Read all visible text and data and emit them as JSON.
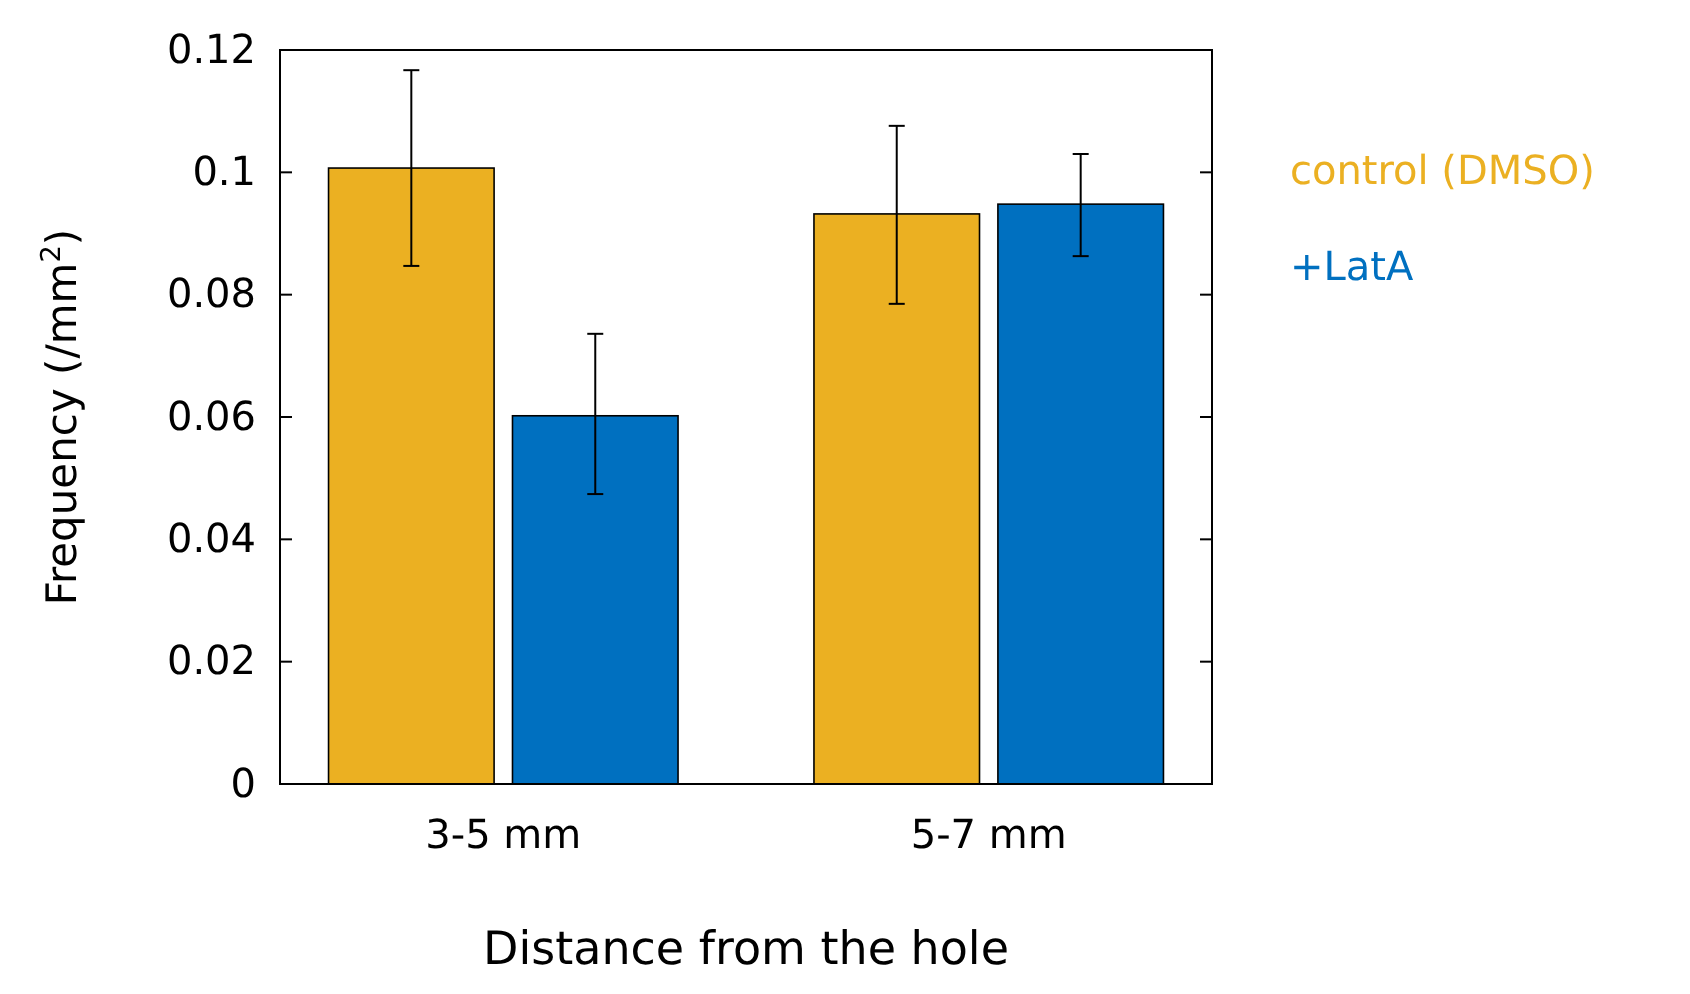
{
  "chart_data": {
    "type": "bar",
    "xlabel": "Distance from the hole",
    "ylabel": "Frequency (/mm$^{2}$)",
    "categories": [
      "3-5 mm",
      "5-7 mm"
    ],
    "series": [
      {
        "name": "control (DMSO)",
        "color": "#ebb022",
        "values": [
          0.1007,
          0.0932
        ],
        "errors": [
          [
            0.0847,
            0.1167
          ],
          [
            0.0785,
            0.1076
          ]
        ]
      },
      {
        "name": "+LatA",
        "color": "#0070c0",
        "values": [
          0.0602,
          0.0948
        ],
        "errors": [
          [
            0.0474,
            0.0736
          ],
          [
            0.0863,
            0.103
          ]
        ]
      }
    ],
    "ylim": [
      0,
      0.12
    ],
    "yticks": [
      0,
      0.02,
      0.04,
      0.06,
      0.08,
      0.1,
      0.12
    ],
    "legend": "right",
    "grid": false
  }
}
